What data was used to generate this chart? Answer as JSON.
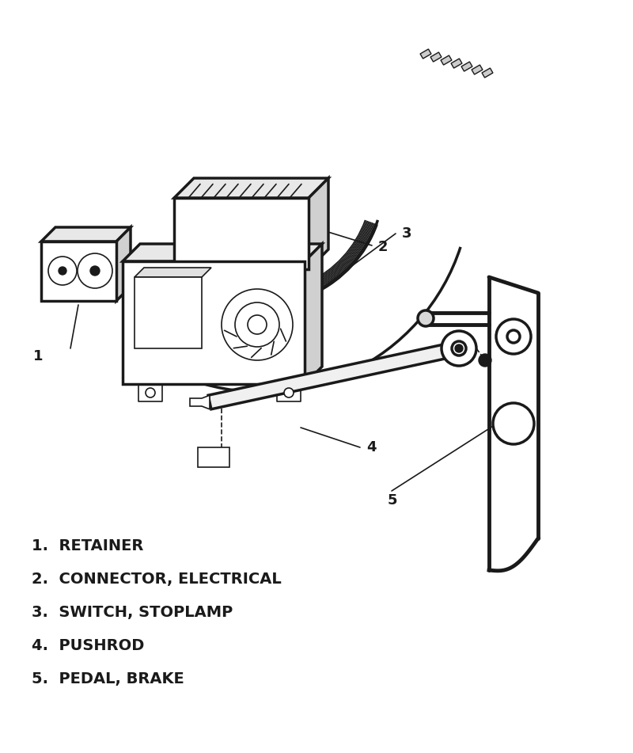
{
  "background_color": "#ffffff",
  "line_color": "#1a1a1a",
  "labels": [
    {
      "num": "1",
      "text": "RETAINER"
    },
    {
      "num": "2",
      "text": "CONNECTOR, ELECTRICAL"
    },
    {
      "num": "3",
      "text": "SWITCH, STOPLAMP"
    },
    {
      "num": "4",
      "text": "PUSHROD"
    },
    {
      "num": "5",
      "text": "PEDAL, BRAKE"
    }
  ],
  "fig_width": 8.0,
  "fig_height": 9.51,
  "dpi": 100
}
